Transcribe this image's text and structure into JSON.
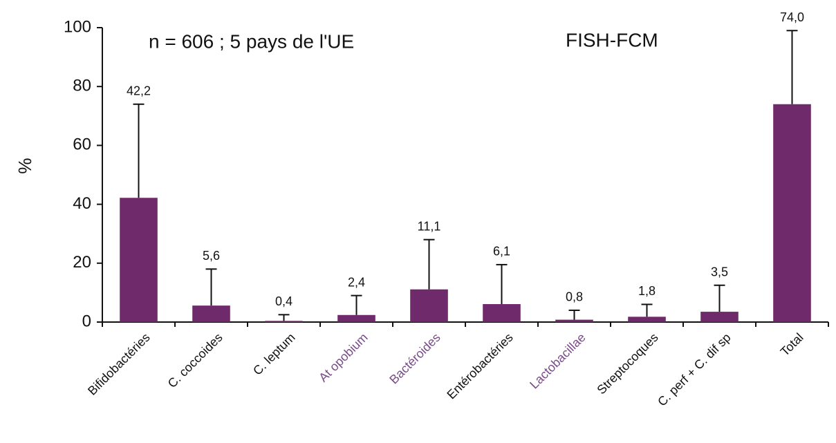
{
  "chart_data": {
    "type": "bar",
    "y_label": "%",
    "annotations": [
      "n = 606 ; 5 pays de l'UE",
      "FISH-FCM"
    ],
    "categories": [
      "Bifidobactéries",
      "C. coccoides",
      "C. leptum",
      "At opobium",
      "Bactéroides",
      "Entérobactéries",
      "Lactobacillae",
      "Streptocoques",
      "C. perf + C. dif sp",
      "Total"
    ],
    "category_colors": [
      "#111111",
      "#111111",
      "#111111",
      "#7a4a8a",
      "#7a4a8a",
      "#111111",
      "#7a4a8a",
      "#111111",
      "#111111",
      "#111111"
    ],
    "values": [
      42.2,
      5.6,
      0.4,
      2.4,
      11.1,
      6.1,
      0.8,
      1.8,
      3.5,
      74.0
    ],
    "value_labels": [
      "42,2",
      "5,6",
      "0,4",
      "2,4",
      "11,1",
      "6,1",
      "0,8",
      "1,8",
      "3,5",
      "74,0"
    ],
    "errors": [
      31.8,
      12.4,
      2.1,
      6.6,
      16.9,
      13.4,
      3.2,
      4.2,
      9.0,
      25.0
    ],
    "color": "#6f2a6b",
    "ylim": [
      0,
      100
    ],
    "yticks": [
      0,
      20,
      40,
      60,
      80,
      100
    ]
  }
}
